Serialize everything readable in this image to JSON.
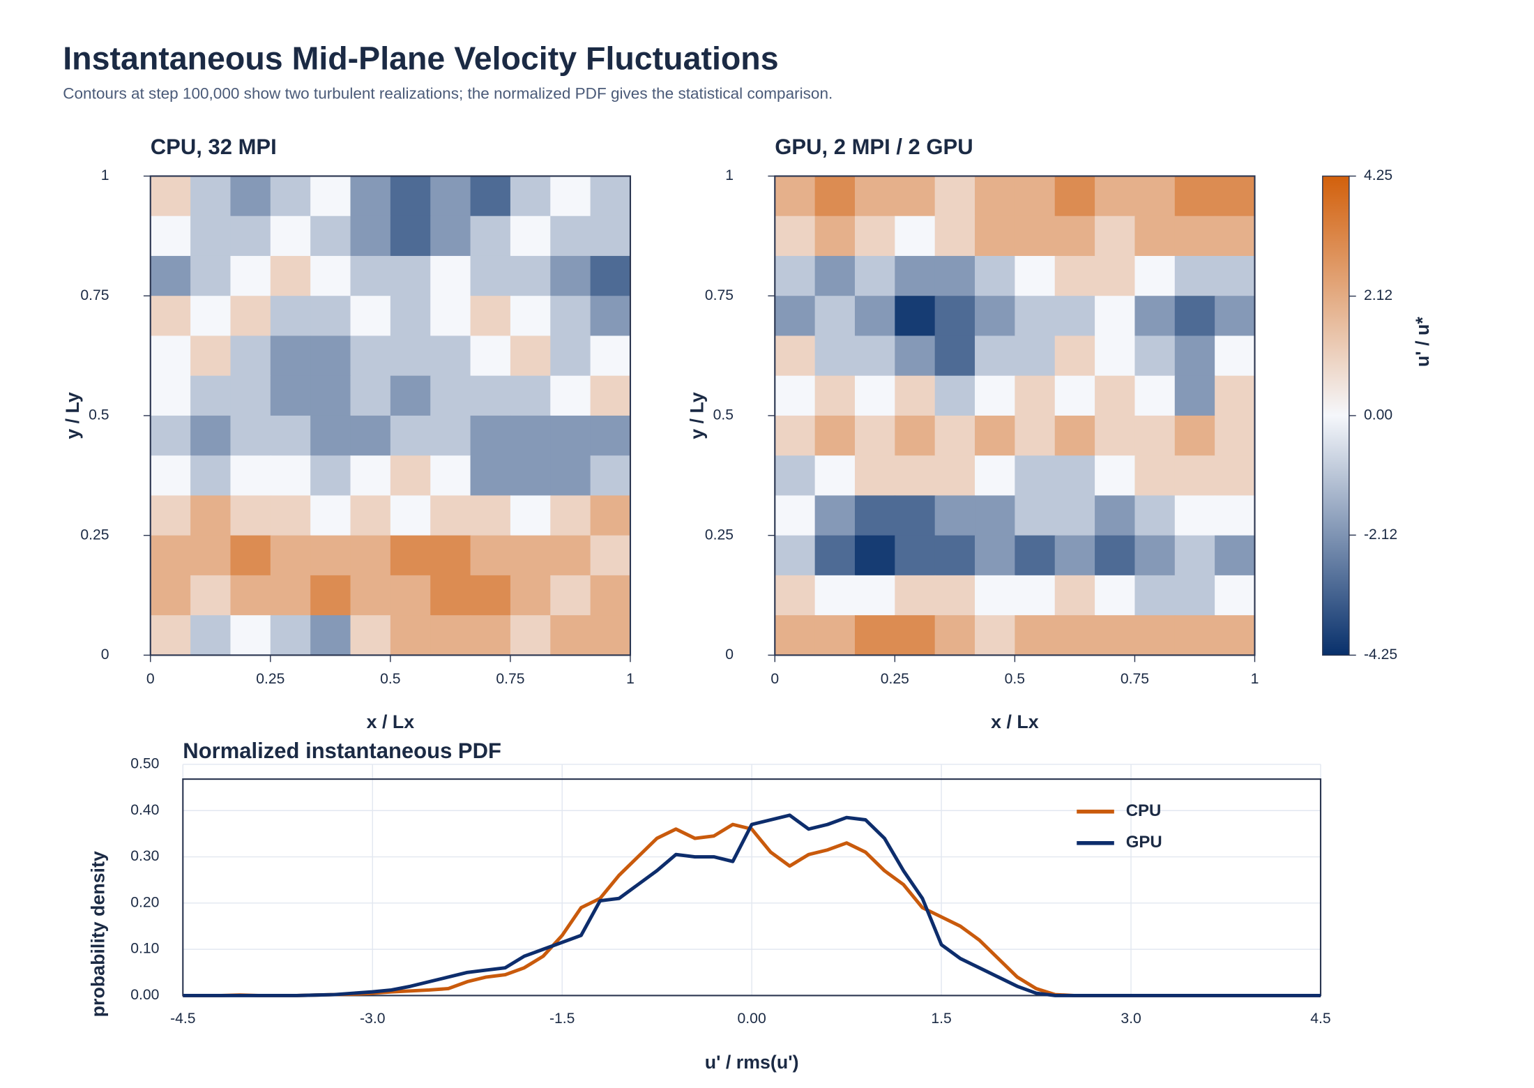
{
  "title": "Instantaneous Mid-Plane Velocity Fluctuations",
  "subtitle": "Contours at step 100,000 show two turbulent realizations; the normalized PDF gives the statistical comparison.",
  "chart_data": [
    {
      "type": "heatmap",
      "title": "CPU, 32 MPI",
      "xlabel": "x / Lx",
      "ylabel": "y / Ly",
      "xlim": [
        0,
        1
      ],
      "ylim": [
        0,
        1
      ],
      "xticks": [
        0,
        0.25,
        0.5,
        0.75,
        1
      ],
      "yticks": [
        0,
        0.25,
        0.5,
        0.75,
        1
      ],
      "zlim": [
        -4.25,
        4.25
      ],
      "colorscale": [
        "#08306b",
        "#f5f7fb",
        "#d2600c"
      ],
      "z": [
        [
          1,
          -1,
          -2,
          -1,
          0,
          -2,
          -3,
          -2,
          -3,
          -1,
          0,
          -1
        ],
        [
          0,
          -1,
          -1,
          0,
          -1,
          -2,
          -3,
          -2,
          -1,
          0,
          -1,
          -1
        ],
        [
          -2,
          -1,
          0,
          1,
          0,
          -1,
          -1,
          0,
          -1,
          -1,
          -2,
          -3
        ],
        [
          1,
          0,
          1,
          -1,
          -1,
          0,
          -1,
          0,
          1,
          0,
          -1,
          -2
        ],
        [
          0,
          1,
          -1,
          -2,
          -2,
          -1,
          -1,
          -1,
          0,
          1,
          -1,
          0
        ],
        [
          0,
          -1,
          -1,
          -2,
          -2,
          -1,
          -2,
          -1,
          -1,
          -1,
          0,
          1
        ],
        [
          -1,
          -2,
          -1,
          -1,
          -2,
          -2,
          -1,
          -1,
          -2,
          -2,
          -2,
          -2
        ],
        [
          0,
          -1,
          0,
          0,
          -1,
          0,
          1,
          0,
          -2,
          -2,
          -2,
          -1
        ],
        [
          1,
          2,
          1,
          1,
          0,
          1,
          0,
          1,
          1,
          0,
          1,
          2
        ],
        [
          2,
          2,
          3,
          2,
          2,
          2,
          3,
          3,
          2,
          2,
          2,
          1
        ],
        [
          2,
          1,
          2,
          2,
          3,
          2,
          2,
          3,
          3,
          2,
          1,
          2
        ],
        [
          1,
          -1,
          0,
          -1,
          -2,
          1,
          2,
          2,
          2,
          1,
          2,
          2
        ]
      ]
    },
    {
      "type": "heatmap",
      "title": "GPU, 2 MPI / 2 GPU",
      "xlabel": "x / Lx",
      "ylabel": "y / Ly",
      "xlim": [
        0,
        1
      ],
      "ylim": [
        0,
        1
      ],
      "xticks": [
        0,
        0.25,
        0.5,
        0.75,
        1
      ],
      "yticks": [
        0,
        0.25,
        0.5,
        0.75,
        1
      ],
      "zlim": [
        -4.25,
        4.25
      ],
      "colorscale": [
        "#08306b",
        "#f5f7fb",
        "#d2600c"
      ],
      "colorbar_title": "u' / u*",
      "zticks": [
        4.25,
        2.12,
        {
          "value": 0,
          "label": "0.00"
        },
        -2.12,
        -4.25
      ],
      "z": [
        [
          2,
          3,
          2,
          2,
          1,
          2,
          2,
          3,
          2,
          2,
          3,
          3
        ],
        [
          1,
          2,
          1,
          0,
          1,
          2,
          2,
          2,
          1,
          2,
          2,
          2
        ],
        [
          -1,
          -2,
          -1,
          -2,
          -2,
          -1,
          0,
          1,
          1,
          0,
          -1,
          -1
        ],
        [
          -2,
          -1,
          -2,
          -4,
          -3,
          -2,
          -1,
          -1,
          0,
          -2,
          -3,
          -2
        ],
        [
          1,
          -1,
          -1,
          -2,
          -3,
          -1,
          -1,
          1,
          0,
          -1,
          -2,
          0
        ],
        [
          0,
          1,
          0,
          1,
          -1,
          0,
          1,
          0,
          1,
          0,
          -2,
          1
        ],
        [
          1,
          2,
          1,
          2,
          1,
          2,
          1,
          2,
          1,
          1,
          2,
          1
        ],
        [
          -1,
          0,
          1,
          1,
          1,
          0,
          -1,
          -1,
          0,
          1,
          1,
          1
        ],
        [
          0,
          -2,
          -3,
          -3,
          -2,
          -2,
          -1,
          -1,
          -2,
          -1,
          0,
          0
        ],
        [
          -1,
          -3,
          -4,
          -3,
          -3,
          -2,
          -3,
          -2,
          -3,
          -2,
          -1,
          -2
        ],
        [
          1,
          0,
          0,
          1,
          1,
          0,
          0,
          1,
          0,
          -1,
          -1,
          0
        ],
        [
          2,
          2,
          3,
          3,
          2,
          1,
          2,
          2,
          2,
          2,
          2,
          2
        ]
      ]
    },
    {
      "type": "line",
      "title": "Normalized instantaneous PDF",
      "xlabel": "u' / rms(u')",
      "ylabel": "probability density",
      "xlim": [
        -4.5,
        4.5
      ],
      "ylim": [
        0,
        0.5
      ],
      "grid": true,
      "legend": "upper right",
      "xticks": [
        -4.5,
        {
          "value": -3,
          "label": "-3.0"
        },
        -1.5,
        {
          "value": 0,
          "label": "0.00"
        },
        1.5,
        {
          "value": 3,
          "label": "3.0"
        },
        4.5
      ],
      "yticks": [
        {
          "value": 0,
          "label": "0.00"
        },
        {
          "value": 0.1,
          "label": "0.10"
        },
        {
          "value": 0.2,
          "label": "0.20"
        },
        {
          "value": 0.3,
          "label": "0.30"
        },
        {
          "value": 0.4,
          "label": "0.40"
        },
        {
          "value": 0.5,
          "label": "0.50"
        }
      ],
      "x": [
        -4.5,
        -4.35,
        -4.2,
        -4.05,
        -3.9,
        -3.75,
        -3.6,
        -3.45,
        -3.3,
        -3.15,
        -3.0,
        -2.85,
        -2.7,
        -2.55,
        -2.4,
        -2.25,
        -2.1,
        -1.95,
        -1.8,
        -1.65,
        -1.5,
        -1.35,
        -1.2,
        -1.05,
        -0.9,
        -0.75,
        -0.6,
        -0.45,
        -0.3,
        -0.15,
        0,
        0.15,
        0.3,
        0.45,
        0.6,
        0.75,
        0.9,
        1.05,
        1.2,
        1.35,
        1.5,
        1.65,
        1.8,
        1.95,
        2.1,
        2.25,
        2.4,
        2.55,
        2.7,
        2.85,
        3.0,
        3.15,
        3.3,
        3.45,
        3.6,
        3.75,
        3.9,
        4.05,
        4.2,
        4.35,
        4.5
      ],
      "series": [
        {
          "name": "CPU",
          "color": "#c95a0c",
          "values": [
            0,
            0,
            0,
            0.001,
            0,
            0,
            0,
            0.001,
            0.002,
            0.003,
            0.005,
            0.008,
            0.01,
            0.012,
            0.015,
            0.03,
            0.04,
            0.045,
            0.06,
            0.085,
            0.13,
            0.19,
            0.21,
            0.26,
            0.3,
            0.34,
            0.36,
            0.34,
            0.345,
            0.37,
            0.36,
            0.31,
            0.28,
            0.305,
            0.315,
            0.33,
            0.31,
            0.27,
            0.24,
            0.19,
            0.17,
            0.15,
            0.12,
            0.08,
            0.04,
            0.015,
            0.002,
            0,
            0,
            0,
            0,
            0,
            0,
            0,
            0,
            0,
            0,
            0,
            0,
            0,
            0
          ]
        },
        {
          "name": "GPU",
          "color": "#0d2d6c",
          "values": [
            0,
            0,
            0,
            0,
            0,
            0,
            0,
            0.001,
            0.002,
            0.005,
            0.008,
            0.012,
            0.02,
            0.03,
            0.04,
            0.05,
            0.055,
            0.06,
            0.085,
            0.1,
            0.115,
            0.13,
            0.205,
            0.21,
            0.24,
            0.27,
            0.305,
            0.3,
            0.3,
            0.29,
            0.37,
            0.38,
            0.39,
            0.36,
            0.37,
            0.385,
            0.38,
            0.34,
            0.27,
            0.21,
            0.11,
            0.08,
            0.06,
            0.04,
            0.02,
            0.005,
            0,
            0,
            0,
            0,
            0,
            0,
            0,
            0,
            0,
            0,
            0,
            0,
            0,
            0,
            0
          ]
        }
      ]
    }
  ]
}
